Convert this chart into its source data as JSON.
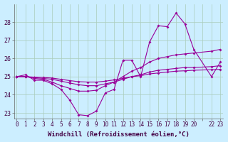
{
  "bg_color": "#cceeff",
  "line_color": "#990099",
  "grid_color": "#aaccbb",
  "xlabel": "Windchill (Refroidissement éolien,°C)",
  "hours": [
    0,
    1,
    2,
    3,
    4,
    5,
    6,
    7,
    8,
    9,
    10,
    11,
    12,
    13,
    14,
    15,
    16,
    17,
    18,
    19,
    20,
    22,
    23
  ],
  "series_zigzag": [
    25.0,
    25.1,
    24.8,
    24.8,
    24.6,
    24.3,
    23.7,
    22.9,
    22.85,
    23.1,
    24.1,
    24.3,
    25.9,
    25.9,
    25.0,
    26.9,
    27.8,
    27.75,
    28.5,
    27.9,
    26.5,
    25.0,
    25.8
  ],
  "series_line1": [
    25.0,
    25.0,
    24.9,
    24.85,
    24.7,
    24.5,
    24.35,
    24.2,
    24.2,
    24.25,
    24.5,
    24.7,
    25.0,
    25.3,
    25.5,
    25.8,
    26.0,
    26.1,
    26.2,
    26.25,
    26.3,
    26.4,
    26.5
  ],
  "series_line2": [
    25.0,
    25.0,
    24.95,
    24.9,
    24.85,
    24.75,
    24.65,
    24.55,
    24.5,
    24.5,
    24.6,
    24.7,
    24.85,
    25.0,
    25.1,
    25.25,
    25.35,
    25.4,
    25.45,
    25.5,
    25.5,
    25.55,
    25.6
  ],
  "series_line3": [
    25.0,
    25.0,
    24.97,
    24.95,
    24.92,
    24.85,
    24.78,
    24.72,
    24.7,
    24.7,
    24.75,
    24.82,
    24.9,
    25.0,
    25.05,
    25.15,
    25.2,
    25.25,
    25.3,
    25.32,
    25.35,
    25.38,
    25.4
  ],
  "ylim": [
    22.7,
    29.0
  ],
  "yticks": [
    23,
    24,
    25,
    26,
    27,
    28
  ],
  "xtick_labels": [
    "0",
    "1",
    "2",
    "3",
    "4",
    "5",
    "6",
    "7",
    "8",
    "9",
    "10",
    "11",
    "12",
    "13",
    "14",
    "15",
    "16",
    "17",
    "18",
    "19",
    "20",
    "",
    "22",
    "23"
  ]
}
